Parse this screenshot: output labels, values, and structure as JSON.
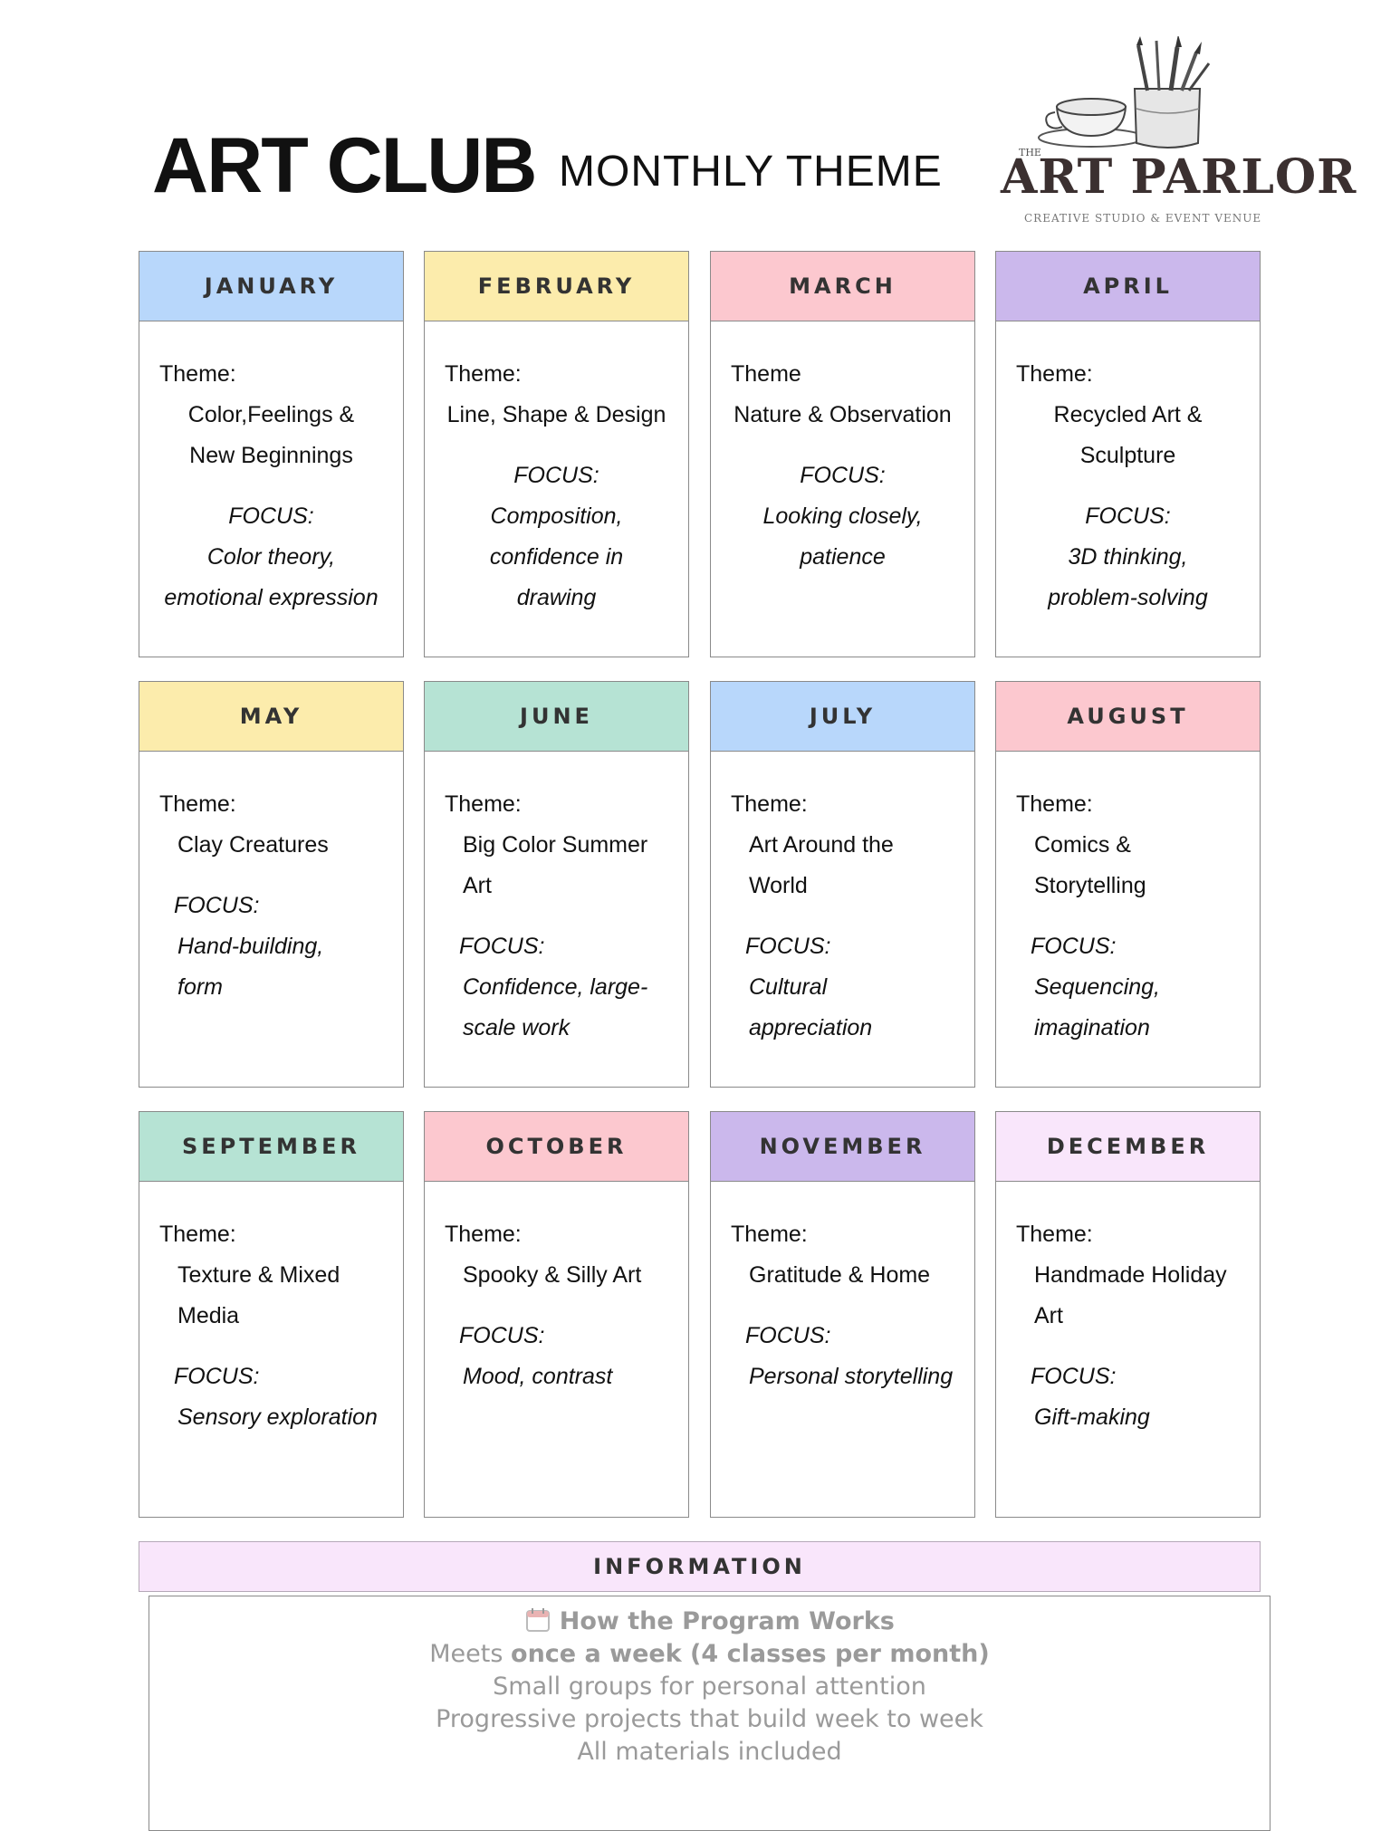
{
  "header": {
    "title": "ART CLUB",
    "subtitle": "MONTHLY THEME",
    "logo": {
      "the": "THE",
      "brand": "ART PARLOR",
      "tagline": "CREATIVE STUDIO & EVENT VENUE"
    }
  },
  "months": [
    {
      "name": "JANUARY",
      "color": "#b8d7fb",
      "theme_label": "Theme:",
      "theme": [
        "Color,Feelings &",
        "New Beginnings"
      ],
      "focus_label": "FOCUS:",
      "focus": [
        "Color theory,",
        "emotional expression"
      ]
    },
    {
      "name": "FEBRUARY",
      "color": "#fcecac",
      "theme_label": "Theme:",
      "theme": [
        "Line, Shape & Design"
      ],
      "focus_label": "FOCUS:",
      "focus": [
        "Composition,",
        "confidence in",
        "drawing"
      ]
    },
    {
      "name": "MARCH",
      "color": "#fcc8cf",
      "theme_label": "Theme",
      "theme": [
        "Nature & Observation"
      ],
      "focus_label": "FOCUS:",
      "focus": [
        "Looking closely,",
        "patience"
      ]
    },
    {
      "name": "APRIL",
      "color": "#cbb8ec",
      "theme_label": "Theme:",
      "theme": [
        "Recycled Art &",
        "Sculpture"
      ],
      "focus_label": "FOCUS:",
      "focus": [
        "3D thinking,",
        "problem-solving"
      ]
    },
    {
      "name": "MAY",
      "color": "#fcecac",
      "theme_label": "Theme:",
      "theme": [
        "Clay Creatures"
      ],
      "focus_label": "FOCUS:",
      "focus": [
        "Hand-building,",
        "form"
      ]
    },
    {
      "name": "JUNE",
      "color": "#b6e3d4",
      "theme_label": "Theme:",
      "theme": [
        "Big Color Summer Art"
      ],
      "focus_label": "FOCUS:",
      "focus": [
        "Confidence, large-",
        "scale work"
      ]
    },
    {
      "name": "JULY",
      "color": "#b8d7fb",
      "theme_label": "Theme:",
      "theme": [
        "Art Around the World"
      ],
      "focus_label": "FOCUS:",
      "focus": [
        "Cultural appreciation"
      ]
    },
    {
      "name": "AUGUST",
      "color": "#fcc8cf",
      "theme_label": "Theme:",
      "theme": [
        "Comics & Storytelling"
      ],
      "focus_label": "FOCUS:",
      "focus": [
        "Sequencing,",
        "imagination"
      ]
    },
    {
      "name": "SEPTEMBER",
      "color": "#b6e3d4",
      "theme_label": "Theme:",
      "theme": [
        "Texture & Mixed Media"
      ],
      "focus_label": "FOCUS:",
      "focus": [
        "Sensory exploration"
      ]
    },
    {
      "name": "OCTOBER",
      "color": "#fcc8cf",
      "theme_label": "Theme:",
      "theme": [
        "Spooky & Silly Art"
      ],
      "focus_label": "FOCUS:",
      "focus": [
        "Mood, contrast"
      ]
    },
    {
      "name": "NOVEMBER",
      "color": "#cbb8ec",
      "theme_label": "Theme:",
      "theme": [
        "Gratitude & Home"
      ],
      "focus_label": "FOCUS:",
      "focus": [
        "Personal storytelling"
      ]
    },
    {
      "name": "DECEMBER",
      "color": "#f9e6fb",
      "theme_label": "Theme:",
      "theme": [
        "Handmade Holiday Art"
      ],
      "focus_label": "FOCUS:",
      "focus": [
        "Gift-making"
      ]
    }
  ],
  "information": {
    "heading": "INFORMATION",
    "icon": "calendar-icon",
    "title": "How the Program Works",
    "line1_pre": "Meets ",
    "line1_bold": "once a week (4 classes per month)",
    "lines": [
      "Small groups for personal attention",
      "Progressive projects that build week to week",
      "All materials included"
    ]
  }
}
